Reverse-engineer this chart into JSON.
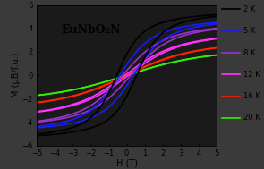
{
  "title": "EuNbO₂N",
  "xlabel": "H (T)",
  "ylabel": "M (μB/f.u.)",
  "xlim": [
    -5,
    5
  ],
  "ylim": [
    -6,
    6
  ],
  "xticks": [
    -5,
    -4,
    -3,
    -2,
    -1,
    0,
    1,
    2,
    3,
    4,
    5
  ],
  "yticks": [
    -6,
    -4,
    -2,
    0,
    2,
    4,
    6
  ],
  "background_color": "#3a3a3a",
  "plot_bg_color": "#1a1a1a",
  "temperatures": [
    2,
    5,
    8,
    12,
    16,
    20
  ],
  "colors": [
    "#000000",
    "#1a1aff",
    "#9933cc",
    "#ff33ff",
    "#ff2200",
    "#33ee00"
  ],
  "saturation_values": [
    5.75,
    5.2,
    4.85,
    4.1,
    3.35,
    2.7
  ],
  "coercive_fields": [
    0.55,
    0.38,
    0.22,
    0.1,
    0.05,
    0.02
  ],
  "softness": [
    0.55,
    0.72,
    0.9,
    1.18,
    1.52,
    1.85
  ],
  "legend_labels": [
    "2 K",
    "5 K",
    "8 K",
    "12 K",
    "16 K",
    "20 K"
  ],
  "title_fontsize": 9,
  "axis_fontsize": 7,
  "tick_fontsize": 6,
  "legend_fontsize": 6
}
